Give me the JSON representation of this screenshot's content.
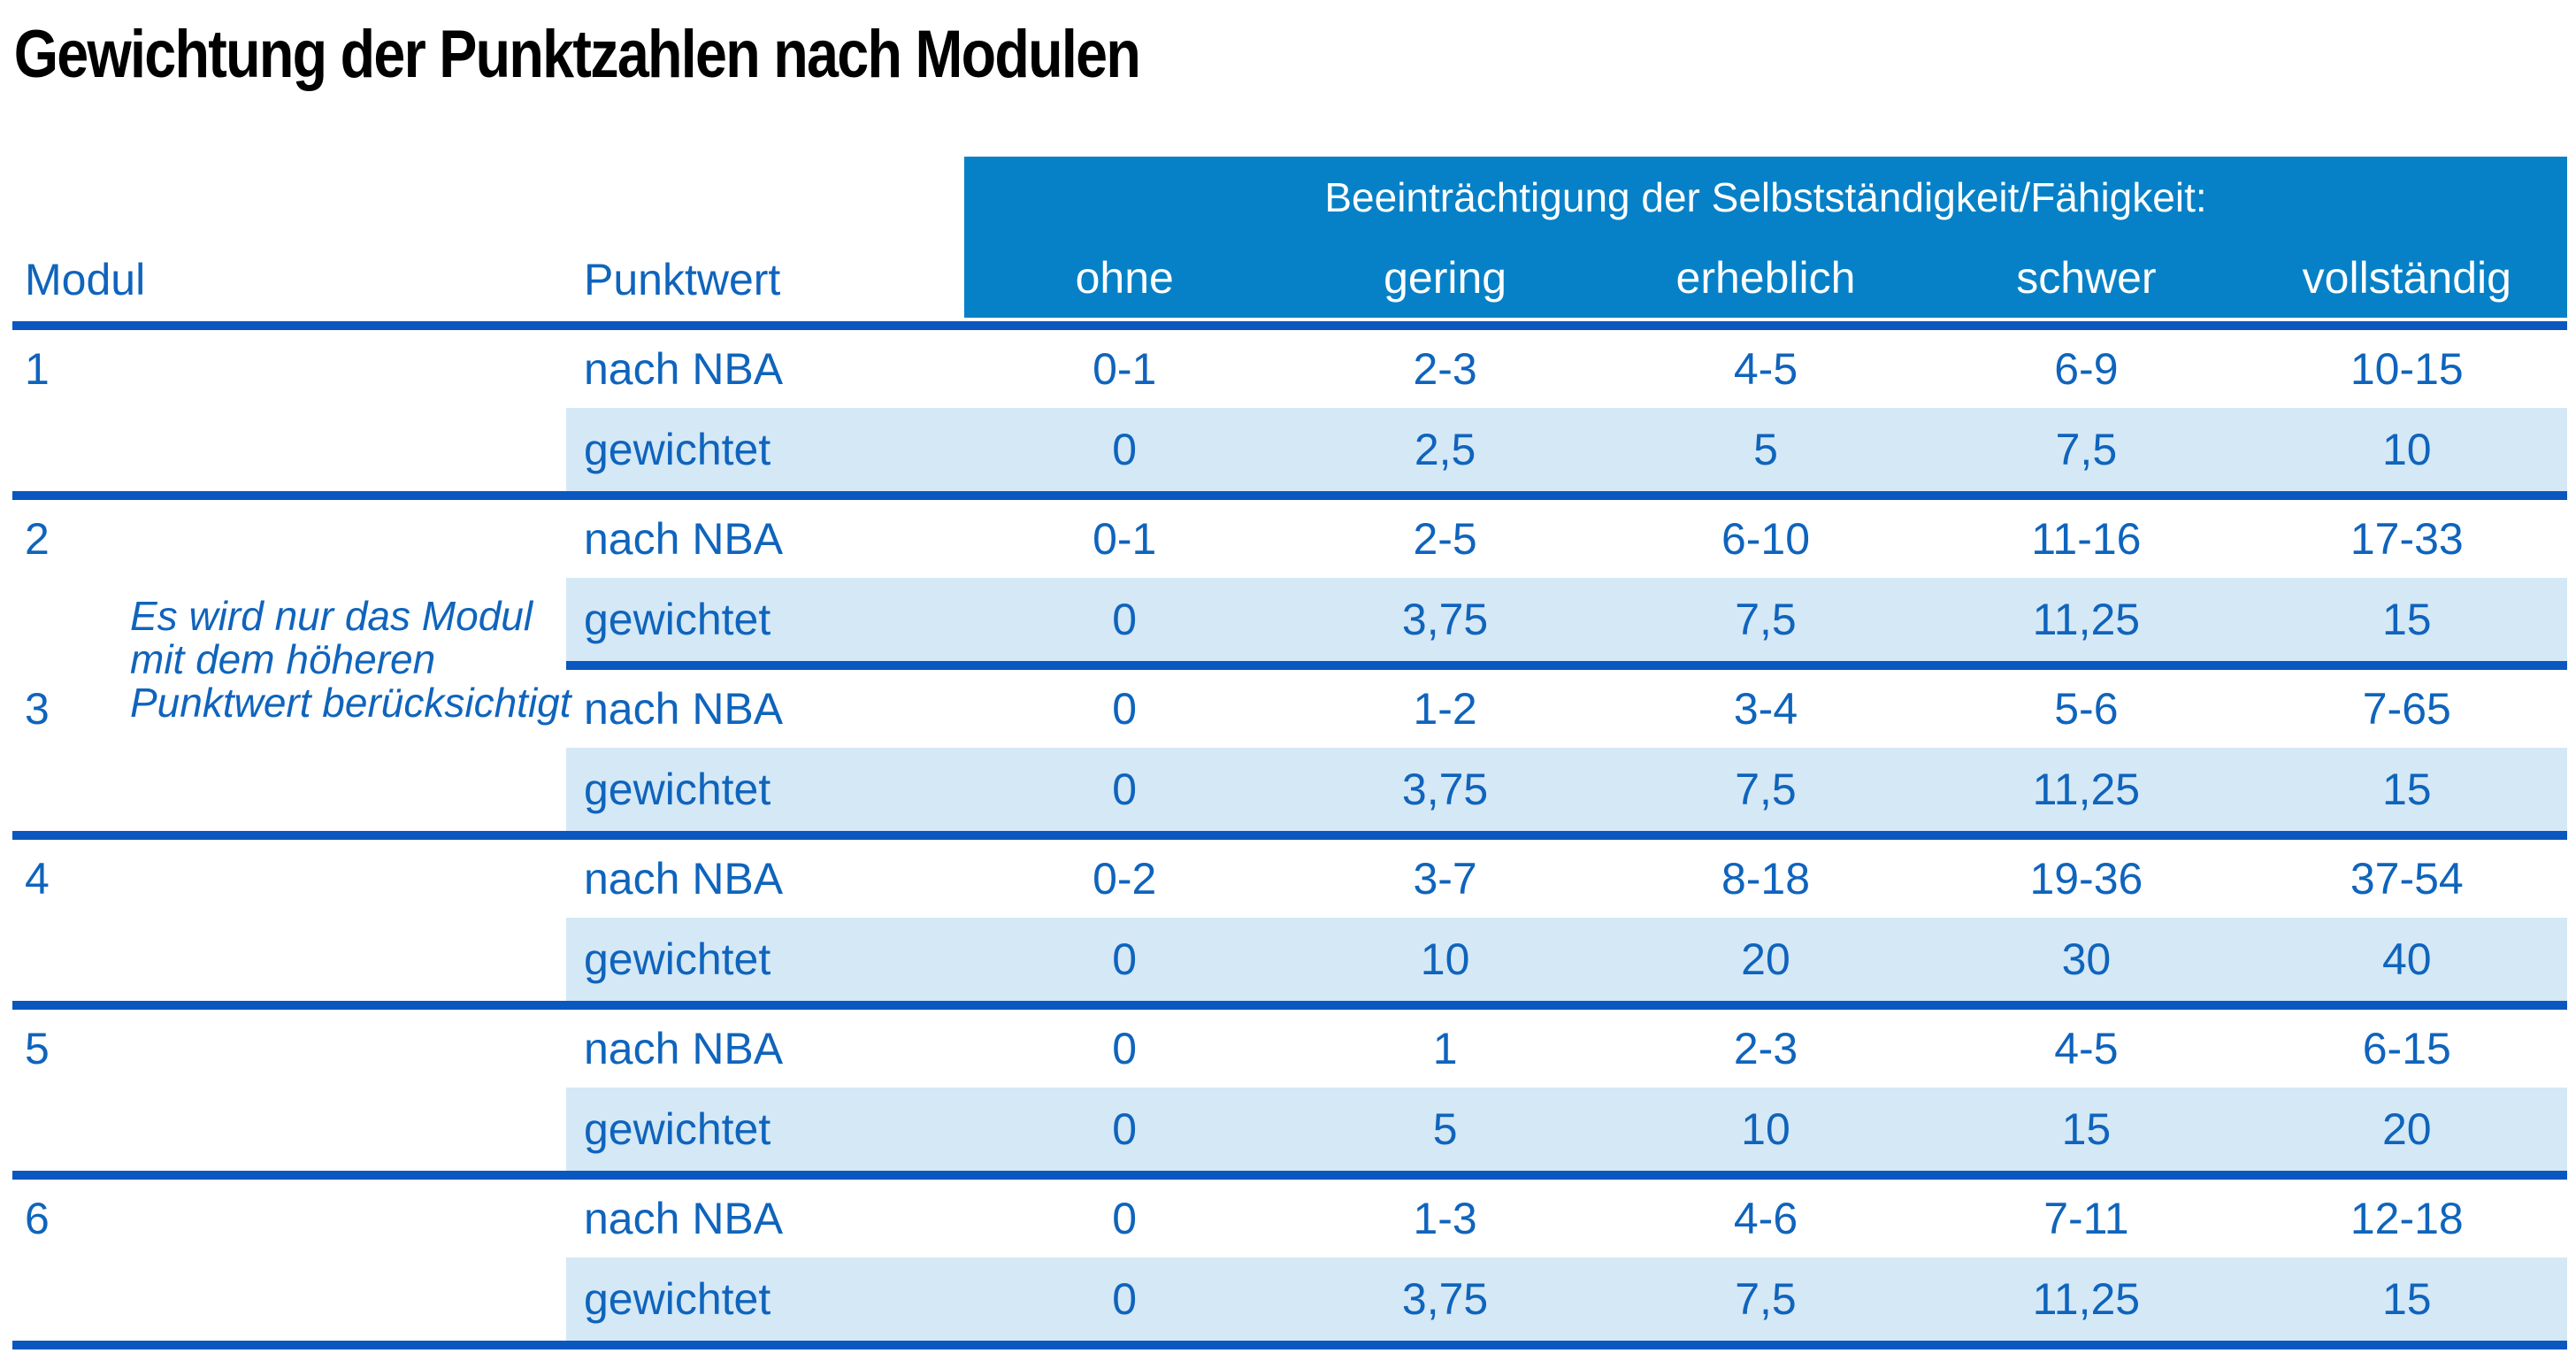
{
  "title": "Gewichtung der Punktzahlen nach Modulen",
  "theme": {
    "band-blue": "#0681C7",
    "line-blue": "#0B57C0",
    "text-blue": "#0F64BC",
    "row-light-blue": "#D5E8F6",
    "title-black": "#000000"
  },
  "table": {
    "band_header": "Beeinträchtigung der Selbstständigkeit/Fähigkeit:",
    "col_modul": "Modul",
    "col_punktwert": "Punktwert",
    "severity_labels": [
      "ohne",
      "gering",
      "erheblich",
      "schwer",
      "vollständig"
    ],
    "row_label_nba": "nach NBA",
    "row_label_weighted": "gewichtet",
    "note_lines": [
      "Es wird nur das Modul",
      "mit dem höheren",
      "Punktwert berücksichtigt"
    ],
    "modules": [
      {
        "modul": "1",
        "nba": [
          "0-1",
          "2-3",
          "4-5",
          "6-9",
          "10-15"
        ],
        "gewichtet": [
          "0",
          "2,5",
          "5",
          "7,5",
          "10"
        ]
      },
      {
        "modul": "2",
        "nba": [
          "0-1",
          "2-5",
          "6-10",
          "11-16",
          "17-33"
        ],
        "gewichtet": [
          "0",
          "3,75",
          "7,5",
          "11,25",
          "15"
        ]
      },
      {
        "modul": "3",
        "nba": [
          "0",
          "1-2",
          "3-4",
          "5-6",
          "7-65"
        ],
        "gewichtet": [
          "0",
          "3,75",
          "7,5",
          "11,25",
          "15"
        ]
      },
      {
        "modul": "4",
        "nba": [
          "0-2",
          "3-7",
          "8-18",
          "19-36",
          "37-54"
        ],
        "gewichtet": [
          "0",
          "10",
          "20",
          "30",
          "40"
        ]
      },
      {
        "modul": "5",
        "nba": [
          "0",
          "1",
          "2-3",
          "4-5",
          "6-15"
        ],
        "gewichtet": [
          "0",
          "5",
          "10",
          "15",
          "20"
        ]
      },
      {
        "modul": "6",
        "nba": [
          "0",
          "1-3",
          "4-6",
          "7-11",
          "12-18"
        ],
        "gewichtet": [
          "0",
          "3,75",
          "7,5",
          "11,25",
          "15"
        ]
      }
    ]
  }
}
